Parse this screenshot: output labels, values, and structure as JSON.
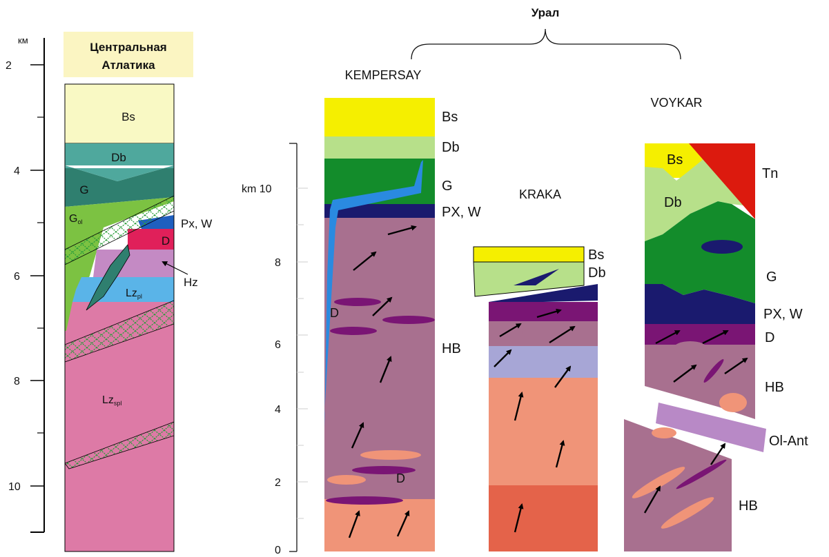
{
  "title": "Урал",
  "atlantic": {
    "title_line1": "Центральная",
    "title_line2": "Атлатика",
    "scale_unit": "км",
    "scale_ticks": [
      "2",
      "4",
      "6",
      "8",
      "10"
    ],
    "layers": {
      "bs": "Bs",
      "db": "Db",
      "g": "G",
      "g_ol_main": "G",
      "g_ol_sub": "ol",
      "pxw": "Px, W",
      "d": "D",
      "hz": "Hz",
      "lz_pl_main": "Lz",
      "lz_pl_sub": "pl",
      "lz_spl_main": "Lz",
      "lz_spl_sub": "spl"
    }
  },
  "ural": {
    "scale_label": "km 10",
    "scale_ticks": [
      "8",
      "6",
      "4",
      "2",
      "0"
    ],
    "kempersay": {
      "name": "KEMPERSAY",
      "labels": {
        "bs": "Bs",
        "db": "Db",
        "g": "G",
        "pxw": "PX, W",
        "d_upper": "D",
        "hb": "HB",
        "d_lower": "D"
      }
    },
    "kraka": {
      "name": "KRAKA",
      "labels": {
        "bs": "Bs",
        "db": "Db"
      }
    },
    "voykar": {
      "name": "VOYKAR",
      "labels": {
        "bs": "Bs",
        "tn": "Tn",
        "db": "Db",
        "g": "G",
        "pxw": "PX, W",
        "d": "D",
        "hb": "HB",
        "ol_ant": "Ol-Ant",
        "hb_lower": "HB"
      }
    }
  },
  "colors": {
    "basalt": "#f9f9c4",
    "bs_ural": "#f5ef00",
    "db": "#4fa89d",
    "db_ural": "#b7e08a",
    "gabbro": "#2f7f6f",
    "gabbro_ural": "#138c2b",
    "g_ol": "#7cc242",
    "pxw": "#1f5fbf",
    "pxw_ural": "#1a1a6e",
    "dunite": "#e0205a",
    "dunite_ural": "#7a1574",
    "hz": "#c48ac4",
    "lz_pl": "#5ab4e8",
    "lz_spl": "#dd7aa6",
    "hb": "#a8708f",
    "salmon": "#f09478",
    "deep_salmon": "#e4634a",
    "lavender": "#a7a6d6",
    "ol_ant": "#b889c6",
    "tn": "#dc1a0e",
    "blue_vein": "#2a8ae0"
  }
}
